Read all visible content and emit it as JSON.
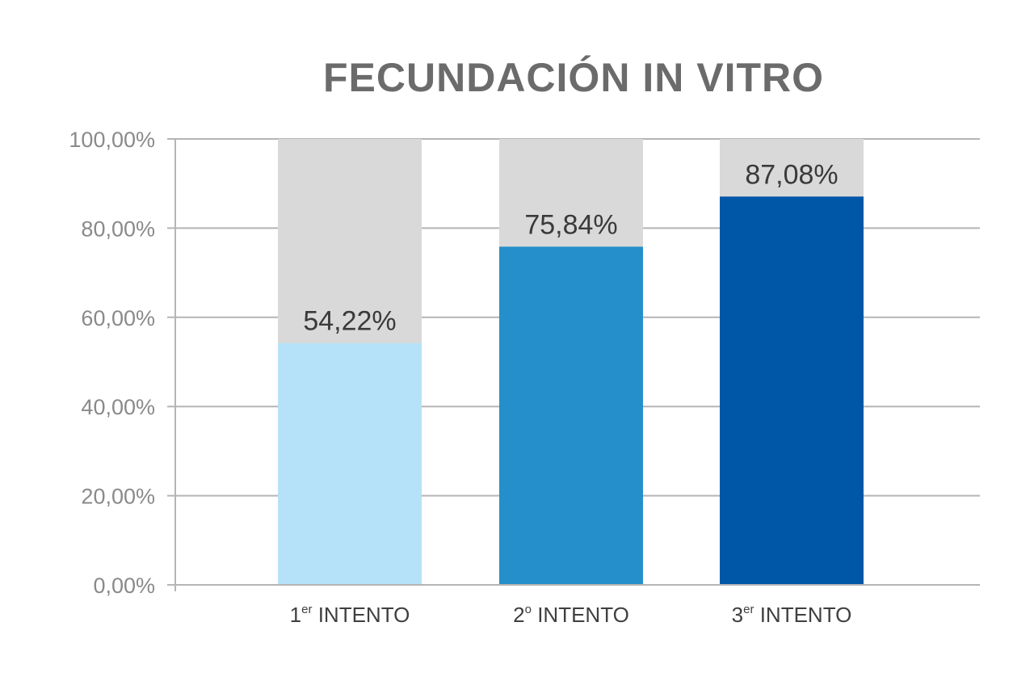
{
  "chart_data": {
    "type": "bar",
    "title": "FECUNDACIÓN IN VITRO",
    "xlabel": "",
    "ylabel": "",
    "ylim": [
      0,
      100
    ],
    "yticks": [
      "0,00%",
      "20,00%",
      "40,00%",
      "60,00%",
      "80,00%",
      "100,00%"
    ],
    "categories": [
      {
        "main": "1",
        "sup": "er",
        "rest": " INTENTO"
      },
      {
        "main": "2",
        "sup": "o",
        "rest": " INTENTO"
      },
      {
        "main": "3",
        "sup": "er",
        "rest": " INTENTO"
      }
    ],
    "values": [
      54.22,
      75.84,
      87.08
    ],
    "value_labels": [
      "54,22%",
      "75,84%",
      "87,08%"
    ],
    "background_value": 100,
    "grid": true,
    "legend": "none",
    "colors": {
      "bars": [
        "#b5e2f8",
        "#258fcb",
        "#0057a8"
      ],
      "background_bar": "#d9d9d9",
      "title": "#6b6b6b",
      "grid": "#b5b5b5"
    }
  }
}
